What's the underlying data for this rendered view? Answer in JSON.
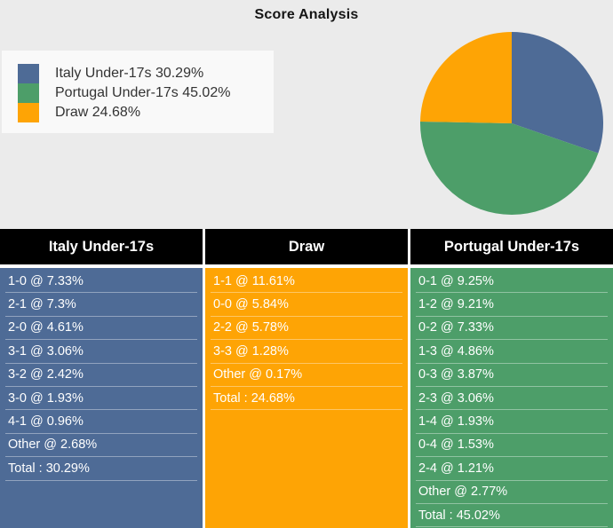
{
  "title": "Score Analysis",
  "colors": {
    "italy": "#4e6b96",
    "portugal": "#4d9e69",
    "draw": "#fea405",
    "header_bg": "#000000",
    "page_bg": "#ebebeb",
    "legend_bg": "#f9f9f9"
  },
  "legend": {
    "items": [
      {
        "label": "Italy Under-17s 30.29%",
        "color": "#4e6b96"
      },
      {
        "label": "Portugal Under-17s 45.02%",
        "color": "#4d9e69"
      },
      {
        "label": "Draw 24.68%",
        "color": "#fea405"
      }
    ]
  },
  "chart_data": {
    "type": "pie",
    "title": "Score Analysis",
    "start_angle_deg": 0,
    "direction": "clockwise",
    "legend_position": "top-left",
    "slices": [
      {
        "label": "Italy Under-17s",
        "value": 30.29,
        "color": "#4e6b96"
      },
      {
        "label": "Portugal Under-17s",
        "value": 45.02,
        "color": "#4d9e69"
      },
      {
        "label": "Draw",
        "value": 24.68,
        "color": "#fea405"
      }
    ]
  },
  "tables": [
    {
      "header": "Italy Under-17s",
      "rows": [
        "1-0 @ 7.33%",
        "2-1 @ 7.3%",
        "2-0 @ 4.61%",
        "3-1 @ 3.06%",
        "3-2 @ 2.42%",
        "3-0 @ 1.93%",
        "4-1 @ 0.96%",
        "Other @ 2.68%",
        "Total : 30.29%"
      ]
    },
    {
      "header": "Draw",
      "rows": [
        "1-1 @ 11.61%",
        "0-0 @ 5.84%",
        "2-2 @ 5.78%",
        "3-3 @ 1.28%",
        "Other @ 0.17%",
        "Total : 24.68%"
      ]
    },
    {
      "header": "Portugal Under-17s",
      "rows": [
        "0-1 @ 9.25%",
        "1-2 @ 9.21%",
        "0-2 @ 7.33%",
        "1-3 @ 4.86%",
        "0-3 @ 3.87%",
        "2-3 @ 3.06%",
        "1-4 @ 1.93%",
        "0-4 @ 1.53%",
        "2-4 @ 1.21%",
        "Other @ 2.77%",
        "Total : 45.02%"
      ]
    }
  ]
}
